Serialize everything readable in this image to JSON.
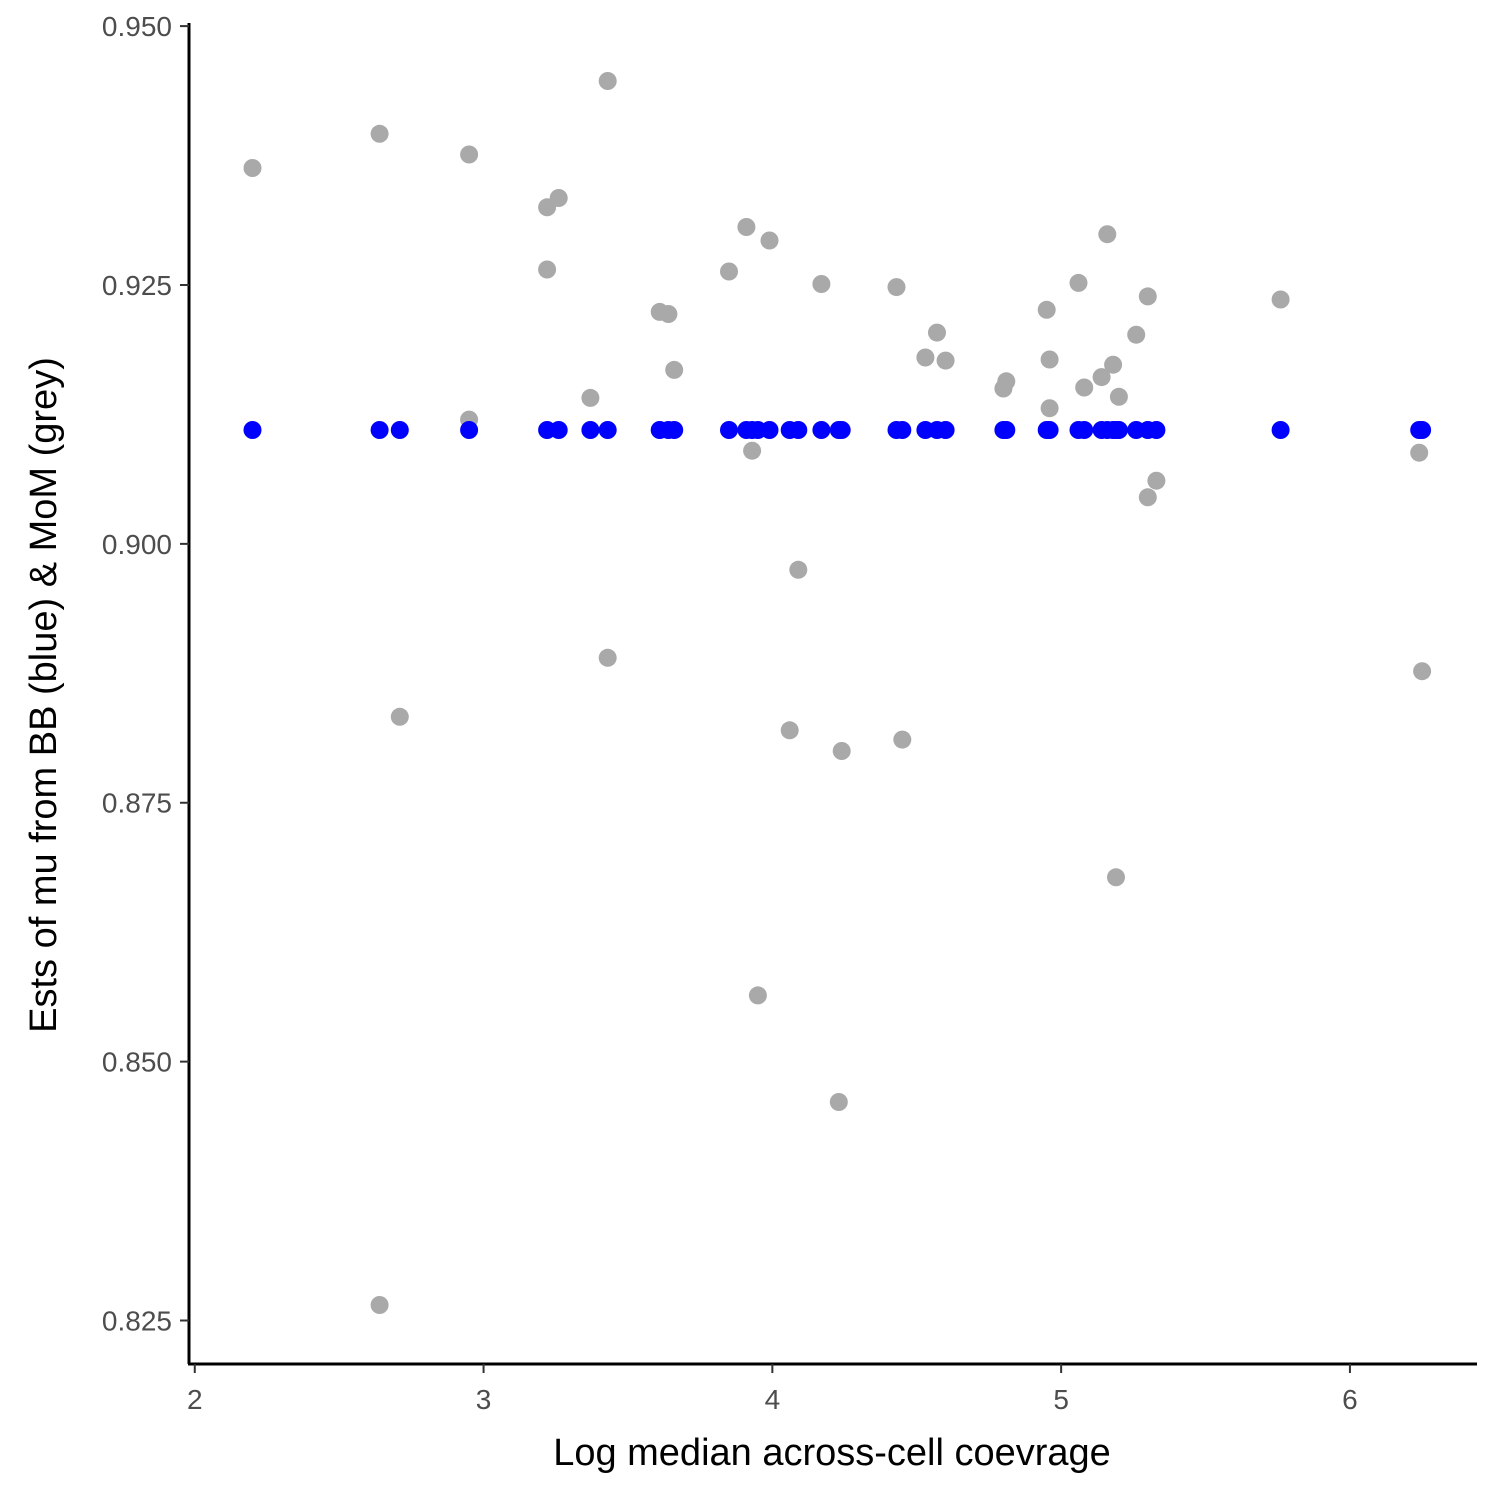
{
  "chart_data": {
    "type": "scatter",
    "xlabel": "Log median across-cell coevrage",
    "ylabel": "Ests of mu from BB (blue) & MoM (grey)",
    "xlim": [
      1.98,
      6.44
    ],
    "ylim": [
      0.8208,
      0.9503
    ],
    "x_ticks": [
      2,
      3,
      4,
      5,
      6
    ],
    "y_ticks": [
      0.825,
      0.85,
      0.875,
      0.9,
      0.925,
      0.95
    ],
    "x_tick_labels": [
      "2",
      "3",
      "4",
      "5",
      "6"
    ],
    "y_tick_labels": [
      "0.825",
      "0.850",
      "0.875",
      "0.900",
      "0.925",
      "0.950"
    ],
    "grid": false,
    "colors": {
      "bb": "#0000ff",
      "mom": "#a9a9a9"
    },
    "series": [
      {
        "color": "#a9a9a9",
        "points": [
          [
            2.2,
            0.9363
          ],
          [
            2.64,
            0.9396
          ],
          [
            2.64,
            0.8265
          ],
          [
            2.71,
            0.8833
          ],
          [
            2.95,
            0.9376
          ],
          [
            2.95,
            0.912
          ],
          [
            3.22,
            0.9325
          ],
          [
            3.22,
            0.9265
          ],
          [
            3.26,
            0.9334
          ],
          [
            3.37,
            0.9141
          ],
          [
            3.43,
            0.9447
          ],
          [
            3.43,
            0.889
          ],
          [
            3.61,
            0.9224
          ],
          [
            3.64,
            0.9222
          ],
          [
            3.66,
            0.9168
          ],
          [
            3.85,
            0.9263
          ],
          [
            3.91,
            0.9306
          ],
          [
            3.93,
            0.909
          ],
          [
            3.95,
            0.8564
          ],
          [
            3.99,
            0.9293
          ],
          [
            4.06,
            0.882
          ],
          [
            4.09,
            0.8975
          ],
          [
            4.17,
            0.9251
          ],
          [
            4.23,
            0.8461
          ],
          [
            4.24,
            0.88
          ],
          [
            4.43,
            0.9248
          ],
          [
            4.45,
            0.8811
          ],
          [
            4.53,
            0.918
          ],
          [
            4.57,
            0.9204
          ],
          [
            4.6,
            0.9177
          ],
          [
            4.8,
            0.915
          ],
          [
            4.81,
            0.9157
          ],
          [
            4.95,
            0.9226
          ],
          [
            4.96,
            0.9178
          ],
          [
            4.96,
            0.9131
          ],
          [
            5.06,
            0.9252
          ],
          [
            5.08,
            0.9151
          ],
          [
            5.14,
            0.9161
          ],
          [
            5.16,
            0.9299
          ],
          [
            5.18,
            0.9173
          ],
          [
            5.19,
            0.8678
          ],
          [
            5.2,
            0.9142
          ],
          [
            5.26,
            0.9202
          ],
          [
            5.3,
            0.9239
          ],
          [
            5.3,
            0.9045
          ],
          [
            5.33,
            0.9061
          ],
          [
            5.76,
            0.9236
          ],
          [
            6.24,
            0.9088
          ],
          [
            6.25,
            0.8877
          ]
        ]
      },
      {
        "color": "#0000ff",
        "points": [
          [
            2.2,
            0.911
          ],
          [
            2.64,
            0.911
          ],
          [
            2.71,
            0.911
          ],
          [
            2.95,
            0.911
          ],
          [
            3.22,
            0.911
          ],
          [
            3.26,
            0.911
          ],
          [
            3.37,
            0.911
          ],
          [
            3.43,
            0.911
          ],
          [
            3.61,
            0.911
          ],
          [
            3.64,
            0.911
          ],
          [
            3.66,
            0.911
          ],
          [
            3.85,
            0.911
          ],
          [
            3.91,
            0.911
          ],
          [
            3.93,
            0.911
          ],
          [
            3.95,
            0.911
          ],
          [
            3.99,
            0.911
          ],
          [
            4.06,
            0.911
          ],
          [
            4.09,
            0.911
          ],
          [
            4.17,
            0.911
          ],
          [
            4.23,
            0.911
          ],
          [
            4.24,
            0.911
          ],
          [
            4.43,
            0.911
          ],
          [
            4.45,
            0.911
          ],
          [
            4.53,
            0.911
          ],
          [
            4.57,
            0.911
          ],
          [
            4.6,
            0.911
          ],
          [
            4.8,
            0.911
          ],
          [
            4.81,
            0.911
          ],
          [
            4.95,
            0.911
          ],
          [
            4.96,
            0.911
          ],
          [
            5.06,
            0.911
          ],
          [
            5.08,
            0.911
          ],
          [
            5.14,
            0.911
          ],
          [
            5.16,
            0.911
          ],
          [
            5.18,
            0.911
          ],
          [
            5.19,
            0.911
          ],
          [
            5.2,
            0.911
          ],
          [
            5.26,
            0.911
          ],
          [
            5.3,
            0.911
          ],
          [
            5.33,
            0.911
          ],
          [
            5.76,
            0.911
          ],
          [
            6.24,
            0.911
          ],
          [
            6.25,
            0.911
          ]
        ]
      }
    ]
  }
}
